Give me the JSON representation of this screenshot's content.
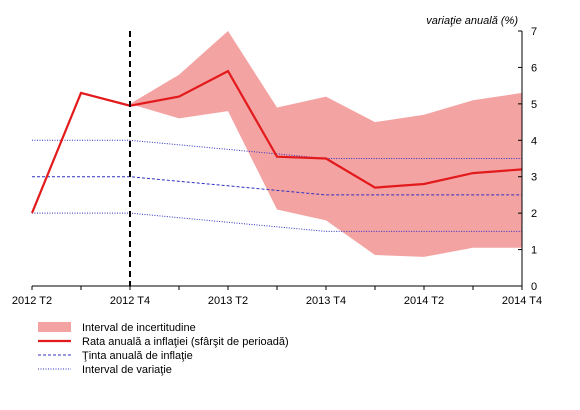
{
  "chart_data": {
    "type": "line",
    "ylabel": "variaţie anuală (%)",
    "ylim": [
      0,
      7
    ],
    "yticks": [
      "0",
      "1",
      "2",
      "3",
      "4",
      "5",
      "6",
      "7"
    ],
    "x": [
      "2012 T2",
      "2012 T3",
      "2012 T4",
      "2013 T1",
      "2013 T2",
      "2013 T3",
      "2013 T4",
      "2014 T1",
      "2014 T2",
      "2014 T3",
      "2014 T4"
    ],
    "xtick_labels": [
      "2012 T2",
      "2012 T4",
      "2013 T2",
      "2013 T4",
      "2014 T2",
      "2014 T4"
    ],
    "forecast_start": "2012 T4",
    "uncertainty_band": {
      "name": "Interval de incertitudine",
      "color": "#f4a3a3",
      "x": [
        "2012 T4",
        "2013 T1",
        "2013 T2",
        "2013 T3",
        "2013 T4",
        "2014 T1",
        "2014 T2",
        "2014 T3",
        "2014 T4"
      ],
      "upper": [
        5.0,
        5.8,
        7.0,
        4.9,
        5.2,
        4.5,
        4.7,
        5.1,
        5.3
      ],
      "lower": [
        5.0,
        4.6,
        4.8,
        2.1,
        1.8,
        0.85,
        0.8,
        1.05,
        1.05
      ]
    },
    "series": [
      {
        "name": "Rata anuală a inflaţiei (sfârşit de perioadă)",
        "color": "#e31a1c",
        "style": "solid",
        "values": [
          2.0,
          5.3,
          4.95,
          5.2,
          5.9,
          3.55,
          3.5,
          2.7,
          2.8,
          3.1,
          3.2
        ]
      },
      {
        "name": "Ţinta anuală de inflaţie",
        "color": "#3030c0",
        "style": "dashed",
        "values": [
          3.0,
          3.0,
          3.0,
          2.875,
          2.75,
          2.625,
          2.5,
          2.5,
          2.5,
          2.5,
          2.5
        ]
      },
      {
        "name": "Interval de variaţie",
        "color": "#3030c0",
        "style": "dotted",
        "values": [
          4.0,
          4.0,
          4.0,
          3.875,
          3.75,
          3.625,
          3.5,
          3.5,
          3.5,
          3.5,
          3.5
        ]
      },
      {
        "name": "",
        "color": "#3030c0",
        "style": "dotted",
        "values": [
          2.0,
          2.0,
          2.0,
          1.875,
          1.75,
          1.625,
          1.5,
          1.5,
          1.5,
          1.5,
          1.5
        ]
      }
    ],
    "grid": false,
    "legend_position": "bottom"
  }
}
